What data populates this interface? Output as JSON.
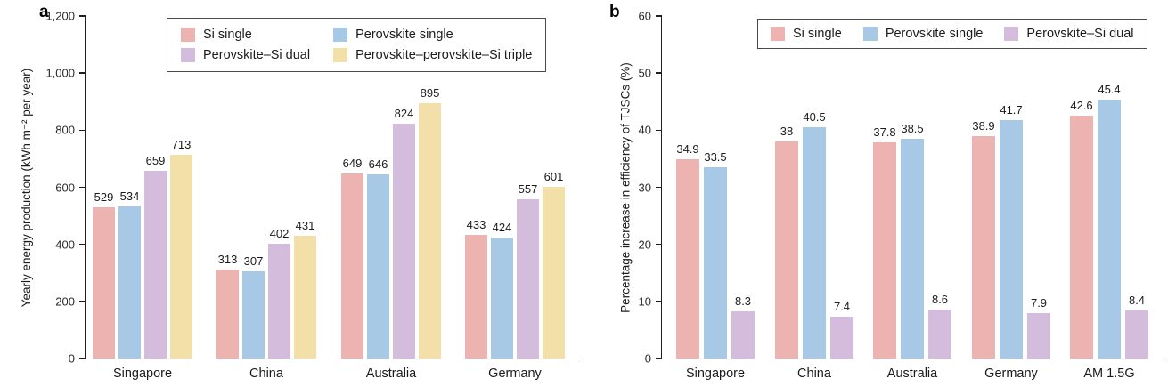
{
  "figure": {
    "background": "#ffffff",
    "text_color": "#1c1b1a",
    "axis_color": "#231f20"
  },
  "chart_data": [
    {
      "type": "bar",
      "panel_label": "a",
      "ylabel": "Yearly energy production (kWh m⁻² per year)",
      "xlabel": "",
      "ylim": [
        0,
        1200
      ],
      "ytick_labels": [
        "0",
        "200",
        "400",
        "600",
        "800",
        "1,000",
        "1,200"
      ],
      "grid": false,
      "legend_position": "top-center-box-2col",
      "value_labels": true,
      "categories": [
        "Singapore",
        "China",
        "Australia",
        "Germany"
      ],
      "series": [
        {
          "name": "Si single",
          "color": "#EDB3B0",
          "values": [
            529,
            313,
            649,
            433
          ]
        },
        {
          "name": "Perovskite single",
          "color": "#A7C9E5",
          "values": [
            534,
            307,
            646,
            424
          ]
        },
        {
          "name": "Perovskite–Si dual",
          "color": "#D4BCDC",
          "values": [
            659,
            402,
            824,
            557
          ]
        },
        {
          "name": "Perovskite–perovskite–Si triple",
          "color": "#F2E0A8",
          "values": [
            713,
            431,
            895,
            601
          ]
        }
      ]
    },
    {
      "type": "bar",
      "panel_label": "b",
      "ylabel": "Percentage increase in efficiency of TJSCs (%)",
      "xlabel": "",
      "ylim": [
        0,
        60
      ],
      "ytick_labels": [
        "0",
        "10",
        "20",
        "30",
        "40",
        "50",
        "60"
      ],
      "grid": false,
      "legend_position": "top-center-box-row",
      "value_labels": true,
      "categories": [
        "Singapore",
        "China",
        "Australia",
        "Germany",
        "AM 1.5G"
      ],
      "series": [
        {
          "name": "Si single",
          "color": "#EDB3B0",
          "values": [
            34.9,
            38,
            37.8,
            38.9,
            42.6
          ]
        },
        {
          "name": "Perovskite single",
          "color": "#A7C9E5",
          "values": [
            33.5,
            40.5,
            38.5,
            41.7,
            45.4
          ]
        },
        {
          "name": "Perovskite–Si dual",
          "color": "#D4BCDC",
          "values": [
            8.3,
            7.4,
            8.6,
            7.9,
            8.4
          ]
        }
      ]
    }
  ]
}
